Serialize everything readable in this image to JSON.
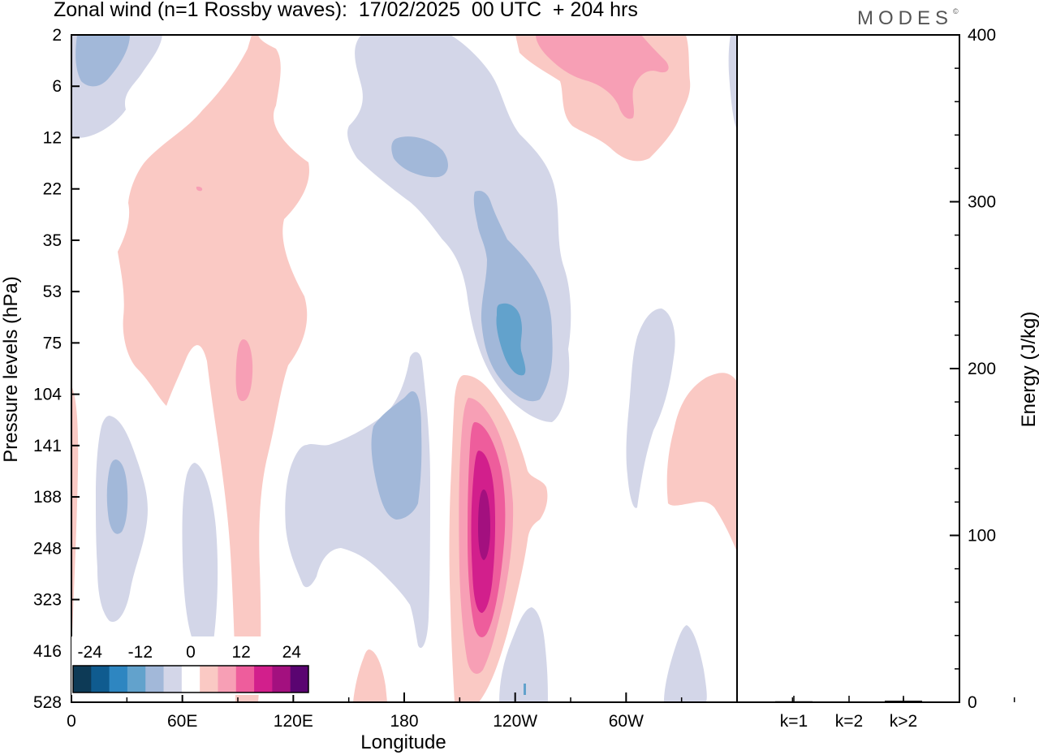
{
  "header": {
    "title": "Zonal wind (n=1 Rossby waves):  17/02/2025  00 UTC  + 204 hrs",
    "logo": "MODES",
    "logo_mark": "©"
  },
  "chart_data": [
    {
      "type": "heatmap",
      "title": "Zonal wind (n=1 Rossby waves):  17/02/2025  00 UTC  + 204 hrs",
      "xlabel": "Longitude",
      "ylabel": "Pressure levels (hPa)",
      "x_tick_labels": [
        "0",
        "60E",
        "120E",
        "180",
        "120W",
        "60W"
      ],
      "y_tick_labels": [
        "2",
        "6",
        "12",
        "22",
        "35",
        "53",
        "75",
        "104",
        "141",
        "188",
        "248",
        "323",
        "416",
        "528"
      ],
      "colorbar": {
        "tick_labels": [
          "-24",
          "-12",
          "0",
          "12",
          "24"
        ],
        "levels": [
          -28,
          -24,
          -20,
          -16,
          -12,
          -8,
          -4,
          4,
          8,
          12,
          16,
          20,
          24,
          28
        ],
        "colors": [
          "#0d3a56",
          "#0f5b8f",
          "#2e86c1",
          "#62a2cc",
          "#a2b8d9",
          "#d3d6e8",
          "#ffffff",
          "#fac9c4",
          "#f79fb5",
          "#ee5d9c",
          "#d21f8c",
          "#a3107f",
          "#5a0471"
        ]
      },
      "regions": [
        {
          "level": -8,
          "color": "#d3d6e8",
          "anchor": [
            10,
            4
          ]
        },
        {
          "level": -12,
          "color": "#a2b8d9",
          "anchor": [
            12,
            5
          ]
        },
        {
          "level": 4,
          "color": "#fac9c4",
          "anchor": [
            75,
            30
          ]
        },
        {
          "level": -8,
          "color": "#d3d6e8",
          "anchor": [
            185,
            25
          ]
        },
        {
          "level": -12,
          "color": "#a2b8d9",
          "anchor": [
            235,
            60
          ]
        },
        {
          "level": -16,
          "color": "#62a2cc",
          "anchor": [
            240,
            70
          ]
        },
        {
          "level": 4,
          "color": "#fac9c4",
          "anchor": [
            280,
            10
          ]
        },
        {
          "level": 8,
          "color": "#f79fb5",
          "anchor": [
            280,
            6
          ]
        },
        {
          "level": 8,
          "color": "#f79fb5",
          "anchor": [
            95,
            90
          ]
        },
        {
          "level": -8,
          "color": "#d3d6e8",
          "anchor": [
            150,
            180
          ]
        },
        {
          "level": -12,
          "color": "#a2b8d9",
          "anchor": [
            160,
            180
          ]
        },
        {
          "level": 4,
          "color": "#fac9c4",
          "anchor": [
            225,
            200
          ]
        },
        {
          "level": 12,
          "color": "#ee5d9c",
          "anchor": [
            224,
            210
          ]
        },
        {
          "level": 20,
          "color": "#a3107f",
          "anchor": [
            223,
            220
          ]
        },
        {
          "level": -8,
          "color": "#d3d6e8",
          "anchor": [
            40,
            200
          ]
        },
        {
          "level": -12,
          "color": "#a2b8d9",
          "anchor": [
            23,
            190
          ]
        },
        {
          "level": -8,
          "color": "#d3d6e8",
          "anchor": [
            300,
            140
          ]
        },
        {
          "level": 4,
          "color": "#fac9c4",
          "anchor": [
            345,
            160
          ]
        }
      ]
    },
    {
      "type": "bar",
      "categories": [
        "k=1",
        "k=2",
        "k>2"
      ],
      "values": [
        0.6,
        0.5,
        0.9
      ],
      "ylabel": "Energy (J/kg)",
      "ylim": [
        0,
        400
      ],
      "y_tick_labels": [
        "0",
        "100",
        "200",
        "300",
        "400"
      ]
    }
  ]
}
